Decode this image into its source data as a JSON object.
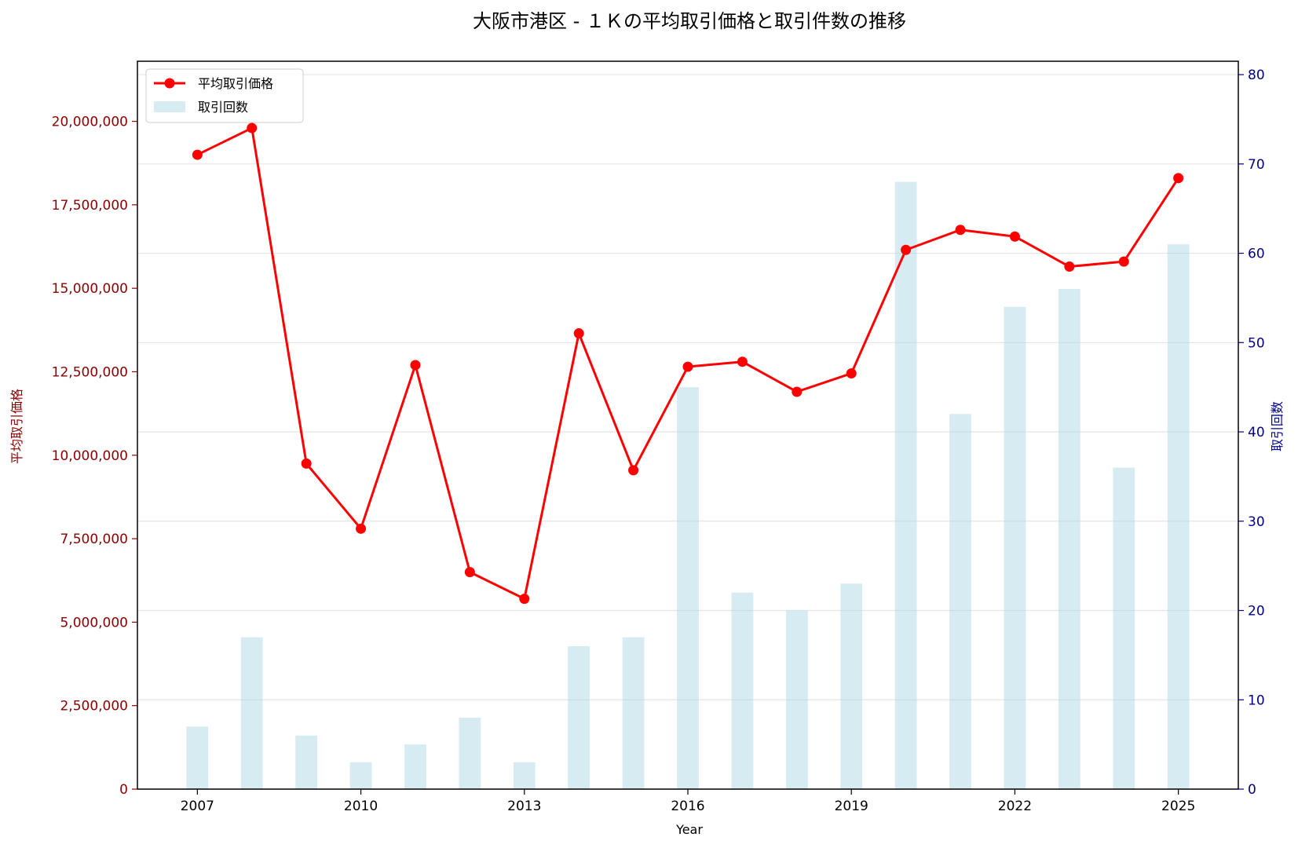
{
  "chart_data": {
    "type": "bar",
    "title": "大阪市港区 - １Ｋの平均取引価格と取引件数の推移",
    "xlabel": "Year",
    "ylabel_left": "平均取引価格",
    "ylabel_right": "取引回数",
    "x": [
      2007,
      2008,
      2009,
      2010,
      2011,
      2012,
      2013,
      2014,
      2015,
      2016,
      2017,
      2018,
      2019,
      2020,
      2021,
      2022,
      2023,
      2024,
      2025
    ],
    "xticks": [
      "2007",
      "2010",
      "2013",
      "2016",
      "2019",
      "2022",
      "2025"
    ],
    "xlim": [
      2005.9,
      2026.1
    ],
    "series": [
      {
        "name": "平均取引価格",
        "type": "line",
        "axis": "left",
        "color": "#ff0000",
        "values": [
          19000000,
          19800000,
          9750000,
          7800000,
          12700000,
          6500000,
          5700000,
          13650000,
          9550000,
          12650000,
          12800000,
          11900000,
          12450000,
          16150000,
          16750000,
          16550000,
          15650000,
          15800000,
          18300000
        ]
      },
      {
        "name": "取引回数",
        "type": "bar",
        "axis": "right",
        "color": "#add8e6",
        "values": [
          7,
          17,
          6,
          3,
          5,
          8,
          3,
          16,
          17,
          45,
          22,
          20,
          23,
          68,
          42,
          54,
          56,
          36,
          61
        ]
      }
    ],
    "yticks_left": [
      "0",
      "2,500,000",
      "5,000,000",
      "7,500,000",
      "10,000,000",
      "12,500,000",
      "15,000,000",
      "17,500,000",
      "20,000,000"
    ],
    "yticks_left_values": [
      0,
      2500000,
      5000000,
      7500000,
      10000000,
      12500000,
      15000000,
      17500000,
      20000000
    ],
    "ylim_left": [
      0,
      21800000
    ],
    "yticks_right": [
      "0",
      "10",
      "20",
      "30",
      "40",
      "50",
      "60",
      "70",
      "80"
    ],
    "yticks_right_values": [
      0,
      10,
      20,
      30,
      40,
      50,
      60,
      70,
      80
    ],
    "ylim_right": [
      0,
      81.5
    ],
    "left_axis_color": "#8b0000",
    "right_axis_color": "#00008b",
    "grid": true,
    "legend_position": "top-left"
  }
}
